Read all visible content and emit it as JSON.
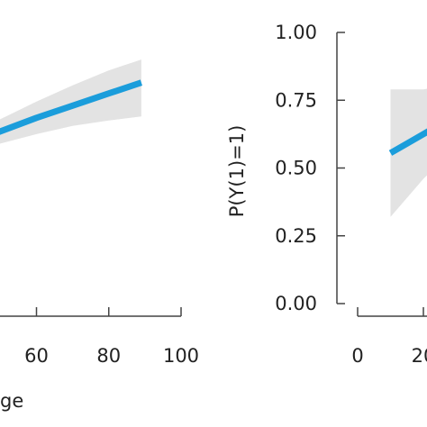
{
  "chart_data": [
    {
      "type": "line",
      "title": "",
      "xlabel": "ge",
      "ylabel": "",
      "x_ticks": [
        "60",
        "80",
        "100"
      ],
      "y_ticks": [],
      "xlim": [
        20,
        100
      ],
      "ylim": [
        0,
        1
      ],
      "grid": false,
      "series": [
        {
          "color": "#1b9ddb",
          "band_color": "#e3e3e3",
          "x": [
            20,
            30,
            40,
            50,
            60,
            70,
            80,
            89
          ],
          "y": [
            0.48,
            0.535,
            0.585,
            0.635,
            0.685,
            0.73,
            0.775,
            0.815
          ],
          "lower": [
            0.44,
            0.5,
            0.545,
            0.59,
            0.625,
            0.655,
            0.675,
            0.69
          ],
          "upper": [
            0.52,
            0.57,
            0.625,
            0.68,
            0.745,
            0.805,
            0.86,
            0.9
          ]
        }
      ]
    },
    {
      "type": "line",
      "title": "",
      "xlabel": "",
      "ylabel": "P(Y(1)=1)",
      "x_ticks": [
        "0",
        "20"
      ],
      "y_ticks": [
        "0.00",
        "0.25",
        "0.50",
        "0.75",
        "1.00"
      ],
      "xlim": [
        0,
        100
      ],
      "ylim": [
        0,
        1
      ],
      "grid": false,
      "series": [
        {
          "color": "#1b9ddb",
          "band_color": "#e3e3e3",
          "x": [
            10,
            15,
            20,
            25
          ],
          "y": [
            0.555,
            0.59,
            0.625,
            0.66
          ],
          "lower": [
            0.32,
            0.39,
            0.46,
            0.52
          ],
          "upper": [
            0.79,
            0.79,
            0.79,
            0.8
          ]
        }
      ]
    }
  ]
}
